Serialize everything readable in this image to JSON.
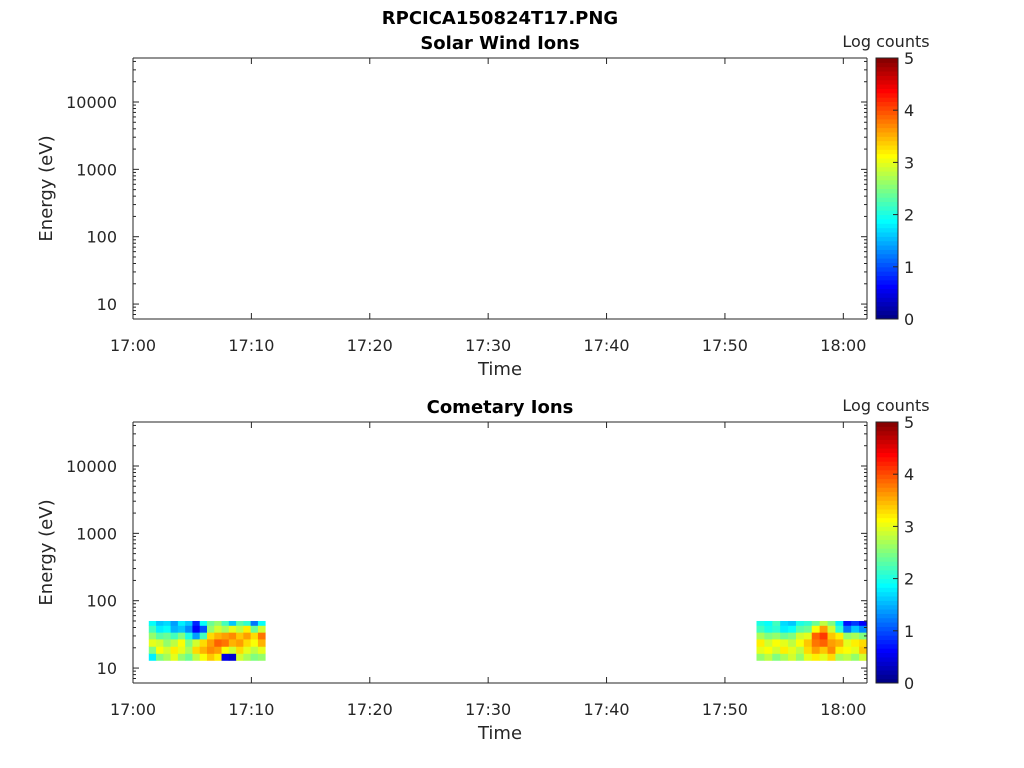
{
  "figure_title": "RPCICA150824T17.PNG",
  "colorbar": {
    "label": "Log counts",
    "ticks": [
      "0",
      "1",
      "2",
      "3",
      "4",
      "5"
    ],
    "range": [
      0,
      5
    ],
    "colormap": "jet"
  },
  "chart_data": [
    {
      "type": "heatmap",
      "title": "Solar Wind Ions",
      "xlabel": "Time",
      "ylabel": "Energy (eV)",
      "x_ticks": [
        "17:00",
        "17:10",
        "17:20",
        "17:30",
        "17:40",
        "17:50",
        "18:00"
      ],
      "y_ticks": [
        "10",
        "100",
        "1000",
        "10000"
      ],
      "xlim": [
        "17:00",
        "18:02"
      ],
      "ylim": [
        6,
        45000
      ],
      "yscale": "log",
      "grid": false,
      "blocks": []
    },
    {
      "type": "heatmap",
      "title": "Cometary Ions",
      "xlabel": "Time",
      "ylabel": "Energy (eV)",
      "x_ticks": [
        "17:00",
        "17:10",
        "17:20",
        "17:30",
        "17:40",
        "17:50",
        "18:00"
      ],
      "y_ticks": [
        "10",
        "100",
        "1000",
        "10000"
      ],
      "xlim": [
        "17:00",
        "18:02"
      ],
      "ylim": [
        6,
        45000
      ],
      "yscale": "log",
      "grid": false,
      "blocks": [
        {
          "t_start": "17:01:20",
          "t_end": "17:11:10",
          "energy_bins": [
            13,
            16.5,
            21,
            27,
            34,
            43,
            50
          ],
          "columns": [
            [
              1.8,
              2.5,
              3.0,
              2.6,
              2.2,
              1.9
            ],
            [
              2.5,
              3.1,
              2.9,
              2.3,
              1.8,
              1.6
            ],
            [
              2.7,
              2.9,
              2.6,
              2.4,
              1.9,
              1.7
            ],
            [
              3.0,
              3.2,
              2.8,
              2.2,
              1.5,
              1.4
            ],
            [
              2.6,
              3.0,
              3.1,
              2.5,
              1.6,
              1.8
            ],
            [
              2.4,
              2.7,
              2.5,
              2.0,
              1.3,
              1.6
            ],
            [
              2.8,
              3.3,
              2.9,
              1.4,
              0.6,
              0.8
            ],
            [
              3.1,
              3.5,
              3.3,
              2.2,
              1.0,
              1.9
            ],
            [
              3.4,
              3.7,
              3.6,
              3.3,
              2.6,
              2.4
            ],
            [
              3.2,
              3.6,
              3.9,
              3.5,
              2.9,
              2.6
            ],
            [
              0.5,
              3.1,
              3.8,
              3.6,
              2.7,
              2.2
            ],
            [
              0.4,
              2.9,
              3.5,
              3.7,
              3.0,
              1.6
            ],
            [
              2.9,
              3.3,
              3.6,
              3.4,
              2.8,
              2.3
            ],
            [
              2.7,
              3.0,
              3.3,
              3.6,
              3.2,
              2.1
            ],
            [
              2.5,
              2.8,
              3.1,
              3.3,
              2.4,
              1.2
            ],
            [
              2.6,
              3.0,
              3.5,
              3.8,
              2.9,
              1.9
            ]
          ]
        },
        {
          "t_start": "17:52:40",
          "t_end": "18:02:00",
          "energy_bins": [
            13,
            16.5,
            21,
            27,
            34,
            43,
            50
          ],
          "columns": [
            [
              2.6,
              3.0,
              3.2,
              2.7,
              2.2,
              2.0
            ],
            [
              2.8,
              3.1,
              2.9,
              2.5,
              2.0,
              1.9
            ],
            [
              2.5,
              2.9,
              3.1,
              2.6,
              2.1,
              2.2
            ],
            [
              2.7,
              3.2,
              3.0,
              2.4,
              1.8,
              1.7
            ],
            [
              2.9,
              3.0,
              2.8,
              2.5,
              1.9,
              1.6
            ],
            [
              2.6,
              2.8,
              3.1,
              2.9,
              2.3,
              2.0
            ],
            [
              3.0,
              3.3,
              3.4,
              3.0,
              2.4,
              2.1
            ],
            [
              3.2,
              3.6,
              3.8,
              3.9,
              3.1,
              2.4
            ],
            [
              3.0,
              3.4,
              3.9,
              4.1,
              3.6,
              2.8
            ],
            [
              3.3,
              3.7,
              3.6,
              3.4,
              2.9,
              2.5
            ],
            [
              2.7,
              3.2,
              3.5,
              3.2,
              2.1,
              1.8
            ],
            [
              2.8,
              3.1,
              3.0,
              2.6,
              1.2,
              0.7
            ],
            [
              2.6,
              3.0,
              3.2,
              2.7,
              1.6,
              0.9
            ],
            [
              2.9,
              3.4,
              3.3,
              2.5,
              1.3,
              0.6
            ]
          ]
        }
      ]
    }
  ]
}
